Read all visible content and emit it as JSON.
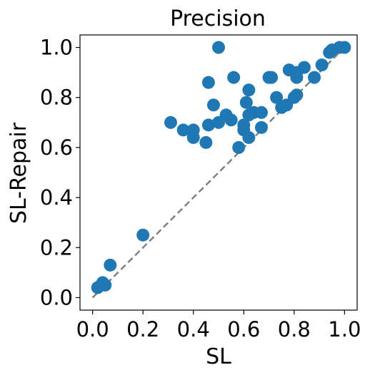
{
  "chart_data": {
    "type": "scatter",
    "title": "Precision",
    "xlabel": "SL",
    "ylabel": "SL-Repair",
    "xlim": [
      -0.05,
      1.05
    ],
    "ylim": [
      -0.05,
      1.05
    ],
    "x_ticks": [
      "0.0",
      "0.2",
      "0.4",
      "0.6",
      "0.8",
      "1.0"
    ],
    "y_ticks": [
      "0.0",
      "0.2",
      "0.4",
      "0.6",
      "0.8",
      "1.0"
    ],
    "x_tick_values": [
      0.0,
      0.2,
      0.4,
      0.6,
      0.8,
      1.0
    ],
    "y_tick_values": [
      0.0,
      0.2,
      0.4,
      0.6,
      0.8,
      1.0
    ],
    "grid": false,
    "point_color": "#1f77b4",
    "reference_line": {
      "style": "dashed",
      "color": "#808080",
      "from": [
        0,
        0
      ],
      "to": [
        1,
        1
      ]
    },
    "points": [
      {
        "x": 0.02,
        "y": 0.04
      },
      {
        "x": 0.04,
        "y": 0.06
      },
      {
        "x": 0.05,
        "y": 0.05
      },
      {
        "x": 0.07,
        "y": 0.13
      },
      {
        "x": 0.2,
        "y": 0.25
      },
      {
        "x": 0.31,
        "y": 0.7
      },
      {
        "x": 0.36,
        "y": 0.67
      },
      {
        "x": 0.4,
        "y": 0.67
      },
      {
        "x": 0.4,
        "y": 0.64
      },
      {
        "x": 0.45,
        "y": 0.62
      },
      {
        "x": 0.46,
        "y": 0.86
      },
      {
        "x": 0.46,
        "y": 0.69
      },
      {
        "x": 0.48,
        "y": 0.77
      },
      {
        "x": 0.5,
        "y": 1.0
      },
      {
        "x": 0.5,
        "y": 0.7
      },
      {
        "x": 0.53,
        "y": 0.73
      },
      {
        "x": 0.55,
        "y": 0.71
      },
      {
        "x": 0.56,
        "y": 0.88
      },
      {
        "x": 0.58,
        "y": 0.6
      },
      {
        "x": 0.6,
        "y": 0.69
      },
      {
        "x": 0.6,
        "y": 0.67
      },
      {
        "x": 0.61,
        "y": 0.78
      },
      {
        "x": 0.62,
        "y": 0.83
      },
      {
        "x": 0.62,
        "y": 0.73
      },
      {
        "x": 0.62,
        "y": 0.64
      },
      {
        "x": 0.64,
        "y": 0.74
      },
      {
        "x": 0.67,
        "y": 0.74
      },
      {
        "x": 0.67,
        "y": 0.68
      },
      {
        "x": 0.7,
        "y": 0.88
      },
      {
        "x": 0.71,
        "y": 0.88
      },
      {
        "x": 0.73,
        "y": 0.8
      },
      {
        "x": 0.75,
        "y": 0.76
      },
      {
        "x": 0.77,
        "y": 0.77
      },
      {
        "x": 0.78,
        "y": 0.91
      },
      {
        "x": 0.8,
        "y": 0.8
      },
      {
        "x": 0.81,
        "y": 0.81
      },
      {
        "x": 0.81,
        "y": 0.9
      },
      {
        "x": 0.81,
        "y": 0.88
      },
      {
        "x": 0.84,
        "y": 0.92
      },
      {
        "x": 0.88,
        "y": 0.88
      },
      {
        "x": 0.91,
        "y": 0.93
      },
      {
        "x": 0.94,
        "y": 0.98
      },
      {
        "x": 0.95,
        "y": 0.99
      },
      {
        "x": 0.98,
        "y": 1.0
      },
      {
        "x": 1.0,
        "y": 1.0
      }
    ]
  }
}
